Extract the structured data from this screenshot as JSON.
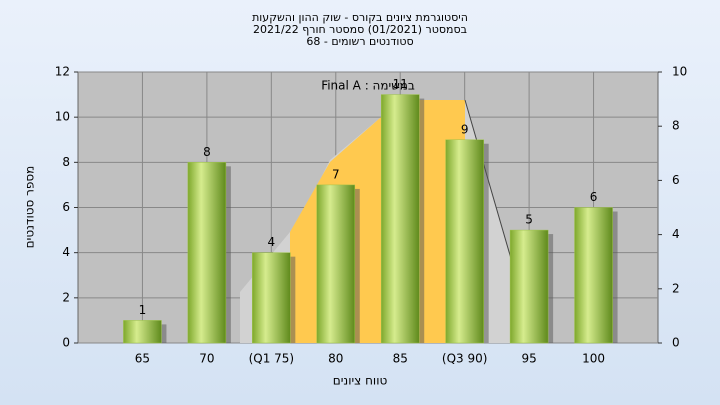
{
  "chart_data": {
    "type": "bar",
    "title": [
      "היסטוגרמת ציונים בקורס - שוק ההון והשקעות",
      "בסמסטר  (01/2021)  סמסטר חורף 2021/22",
      "סטודנטים רשומים - 68"
    ],
    "annotation": "במשימה : Final A",
    "y_label": "מספר סטודנטים",
    "x_label": "טווח ציונים",
    "categories": [
      "65",
      "70",
      "(Q1 75)",
      "80",
      "85",
      "(Q3 90)",
      "95",
      "100"
    ],
    "values": [
      1,
      8,
      4,
      7,
      11,
      9,
      5,
      6
    ],
    "color": "#9dc348",
    "ylim": [
      0,
      12
    ],
    "yticks": [
      0,
      2,
      4,
      6,
      8,
      10,
      12
    ],
    "y2lim": [
      0,
      10
    ],
    "y2ticks": [
      0,
      2,
      4,
      6,
      8,
      10
    ],
    "grid": true
  }
}
